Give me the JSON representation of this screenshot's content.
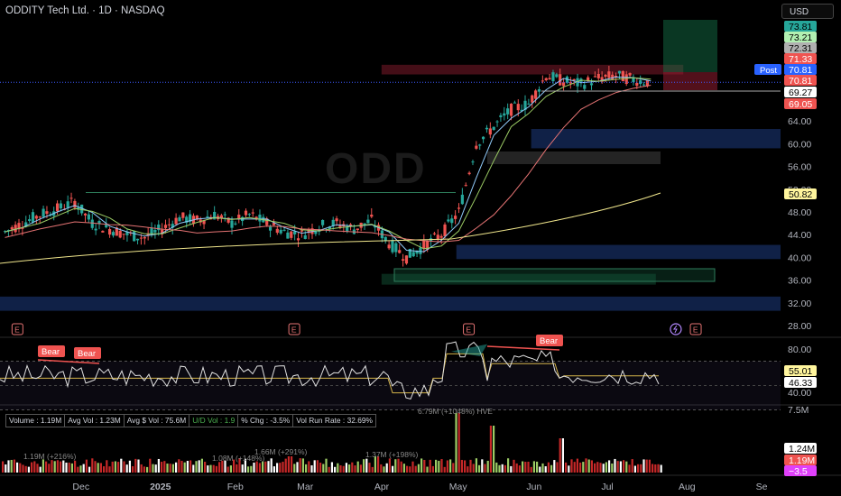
{
  "header": {
    "title": "ODDITY Tech Ltd. · 1D · NASDAQ",
    "currency": "USD",
    "watermark": "ODD"
  },
  "colors": {
    "up": "#26a69a",
    "down": "#ef5350",
    "sma20": "#9ccc65",
    "sma10": "#90caf9",
    "sma50": "#e57373",
    "sma200": "#f0e68c",
    "rsi": "#e0e0e0",
    "rsi_ma": "#d4b44a",
    "zone_blue": "#0f2a55",
    "zone_green": "#0d3522",
    "zone_red": "#4a1420"
  },
  "price_axis": {
    "ticks": [
      "28.00",
      "32.00",
      "36.00",
      "40.00",
      "44.00",
      "48.00",
      "52.00",
      "56.00",
      "60.00",
      "64.00"
    ],
    "labels": [
      {
        "text": "73.81",
        "value": 73.81,
        "bg": "#26a69a",
        "fg": "#000000"
      },
      {
        "text": "73.21",
        "value": 73.21,
        "bg": "#b2f0b2",
        "fg": "#000000"
      },
      {
        "text": "72.31",
        "value": 72.31,
        "bg": "#b0b0b0",
        "fg": "#000000"
      },
      {
        "text": "71.33",
        "value": 71.33,
        "bg": "#ef5350",
        "fg": "#ffffff"
      },
      {
        "text": "70.81",
        "value": 70.81,
        "bg": "#2962ff",
        "fg": "#ffffff"
      },
      {
        "text": "70.81",
        "value": 70.81,
        "bg": "#ef5350",
        "fg": "#ffffff"
      },
      {
        "text": "69.27",
        "value": 69.27,
        "bg": "#ffffff",
        "fg": "#000000"
      },
      {
        "text": "69.05",
        "value": 69.05,
        "bg": "#ef5350",
        "fg": "#ffffff"
      },
      {
        "text": "50.82",
        "value": 50.82,
        "bg": "#fff59d",
        "fg": "#000000"
      }
    ],
    "post_label": "Post"
  },
  "rsi_axis": {
    "ticks": [
      "80.00",
      "40.00"
    ],
    "labels": [
      {
        "text": "55.01",
        "value": 55.01,
        "bg": "#fff59d",
        "fg": "#000000"
      },
      {
        "text": "46.33",
        "value": 46.33,
        "bg": "#ffffff",
        "fg": "#000000"
      }
    ],
    "bear_labels": [
      "Bear",
      "Bear",
      "Bear"
    ]
  },
  "volume_axis": {
    "ticks": [
      "7.5M"
    ],
    "labels": [
      {
        "text": "1.24M",
        "bg": "#ffffff",
        "fg": "#000000"
      },
      {
        "text": "1.19M",
        "bg": "#ef5350",
        "fg": "#ffffff"
      },
      {
        "text": "−3.5",
        "bg": "#e040fb",
        "fg": "#ffffff"
      }
    ],
    "annotations": [
      "1.19M (+216%)",
      "1.08M (+148%)",
      "1.66M (+291%)",
      "1.37M (+198%)",
      "6.79M (+1048%) HVE"
    ]
  },
  "stats": {
    "volume": "Volume : 1.19M",
    "avg_vol": "Avg Vol : 1.23M",
    "avg_dollar_vol": "Avg $ Vol : 75.6M",
    "ud_vol": "U/D Vol : 1.9",
    "pct_chg": "% Chg : -3.5%",
    "vol_run_rate": "Vol Run Rate : 32.69%"
  },
  "time_axis": {
    "labels": [
      {
        "text": "Dec",
        "date": "2024-12-01"
      },
      {
        "text": "2025",
        "date": "2025-01-01"
      },
      {
        "text": "Feb",
        "date": "2025-02-01"
      },
      {
        "text": "Mar",
        "date": "2025-03-01"
      },
      {
        "text": "Apr",
        "date": "2025-04-01"
      },
      {
        "text": "May",
        "date": "2025-05-01"
      },
      {
        "text": "Jun",
        "date": "2025-06-01"
      },
      {
        "text": "Jul",
        "date": "2025-07-01"
      },
      {
        "text": "Aug",
        "date": "2025-08-01"
      },
      {
        "text": "Se",
        "date": "2025-09-01"
      }
    ]
  },
  "earnings_markers": [
    {
      "text": "E",
      "date": "2024-11-06"
    },
    {
      "text": "E",
      "date": "2025-02-25"
    },
    {
      "text": "E",
      "date": "2025-05-06"
    },
    {
      "text": "E",
      "date": "2025-08-05"
    }
  ],
  "dividend_marker": {
    "date": "2025-07-28"
  },
  "chart_data": {
    "type": "candlestick",
    "x_range": [
      "2024-10-30",
      "2025-09-08"
    ],
    "ylim": [
      26,
      75.5
    ],
    "series_price": [
      {
        "date": "2024-11-01",
        "close": 44.5
      },
      {
        "date": "2024-11-08",
        "close": 46.0
      },
      {
        "date": "2024-11-15",
        "close": 47.5
      },
      {
        "date": "2024-11-22",
        "close": 48.5
      },
      {
        "date": "2024-11-29",
        "close": 49.8
      },
      {
        "date": "2024-12-06",
        "close": 46.0
      },
      {
        "date": "2024-12-13",
        "close": 45.0
      },
      {
        "date": "2024-12-20",
        "close": 44.0
      },
      {
        "date": "2024-12-27",
        "close": 43.5
      },
      {
        "date": "2025-01-03",
        "close": 45.0
      },
      {
        "date": "2025-01-10",
        "close": 47.0
      },
      {
        "date": "2025-01-17",
        "close": 46.5
      },
      {
        "date": "2025-01-24",
        "close": 47.5
      },
      {
        "date": "2025-01-31",
        "close": 46.0
      },
      {
        "date": "2025-02-07",
        "close": 47.5
      },
      {
        "date": "2025-02-14",
        "close": 46.0
      },
      {
        "date": "2025-02-21",
        "close": 44.5
      },
      {
        "date": "2025-02-28",
        "close": 44.0
      },
      {
        "date": "2025-03-07",
        "close": 45.5
      },
      {
        "date": "2025-03-14",
        "close": 46.0
      },
      {
        "date": "2025-03-21",
        "close": 45.0
      },
      {
        "date": "2025-03-28",
        "close": 46.5
      },
      {
        "date": "2025-04-04",
        "close": 42.5
      },
      {
        "date": "2025-04-11",
        "close": 40.0
      },
      {
        "date": "2025-04-18",
        "close": 42.0
      },
      {
        "date": "2025-04-25",
        "close": 44.0
      },
      {
        "date": "2025-05-02",
        "close": 48.0
      },
      {
        "date": "2025-05-09",
        "close": 60.0
      },
      {
        "date": "2025-05-16",
        "close": 63.0
      },
      {
        "date": "2025-05-23",
        "close": 66.0
      },
      {
        "date": "2025-05-30",
        "close": 67.0
      },
      {
        "date": "2025-06-06",
        "close": 72.0
      },
      {
        "date": "2025-06-13",
        "close": 71.0
      },
      {
        "date": "2025-06-20",
        "close": 70.5
      },
      {
        "date": "2025-06-27",
        "close": 71.5
      },
      {
        "date": "2025-07-04",
        "close": 72.0
      },
      {
        "date": "2025-07-11",
        "close": 71.3
      },
      {
        "date": "2025-07-18",
        "close": 70.81
      }
    ],
    "zones": [
      {
        "label": "supply",
        "from": "2025-04-01",
        "to": "2025-07-31",
        "low": 72.2,
        "high": 73.9,
        "color": "red"
      },
      {
        "label": "blue-1",
        "from": "2025-05-31",
        "to": "2025-09-08",
        "low": 59.2,
        "high": 62.6,
        "color": "blue"
      },
      {
        "label": "blue-2",
        "from": "2025-05-01",
        "to": "2025-09-08",
        "low": 39.7,
        "high": 42.2,
        "color": "blue"
      },
      {
        "label": "blue-3",
        "from": "2024-10-30",
        "to": "2025-09-08",
        "low": 30.6,
        "high": 33.1,
        "color": "blue"
      },
      {
        "label": "green-base",
        "from": "2025-04-01",
        "to": "2025-07-20",
        "low": 35.2,
        "high": 37.1,
        "color": "green"
      }
    ]
  }
}
